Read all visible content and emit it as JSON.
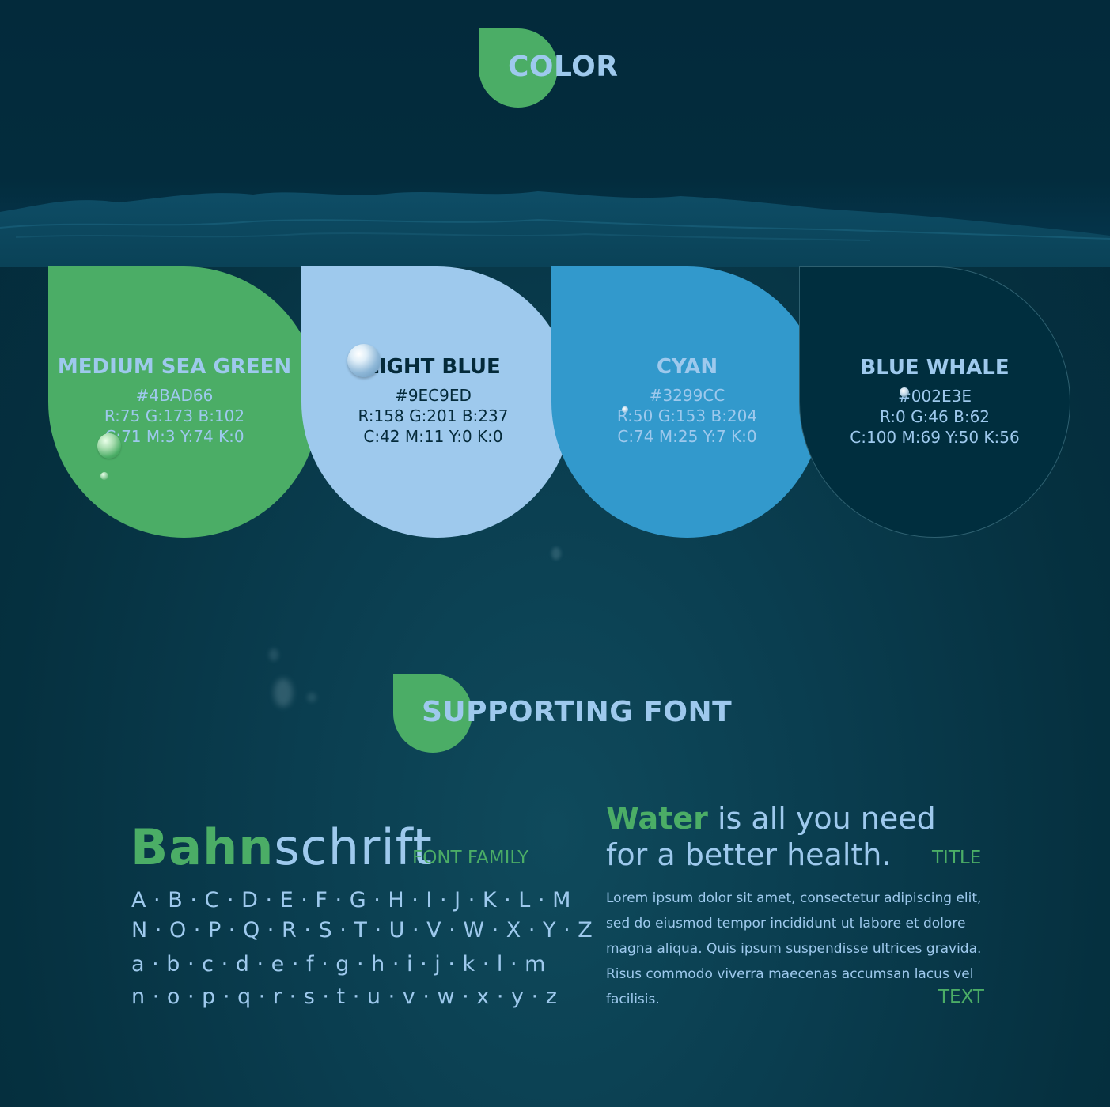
{
  "headings": {
    "color": "COLOR",
    "supporting_font": "SUPPORTING FONT"
  },
  "swatches": [
    {
      "name": "MEDIUM SEA GREEN",
      "hex": "#4BAD66",
      "rgb": "R:75 G:173 B:102",
      "cmyk": "C:71 M:3 Y:74 K:0",
      "color": "#4bad66"
    },
    {
      "name": "LIGHT BLUE",
      "hex": "#9EC9ED",
      "rgb": "R:158 G:201 B:237",
      "cmyk": "C:42 M:11 Y:0 K:0",
      "color": "#9ec9ed"
    },
    {
      "name": "CYAN",
      "hex": "#3299CC",
      "rgb": "R:50 G:153 B:204",
      "cmyk": "C:74 M:25 Y:7 K:0",
      "color": "#3299cc"
    },
    {
      "name": "BLUE WHALE",
      "hex": "#002E3E",
      "rgb": "R:0 G:46 B:62",
      "cmyk": "C:100 M:69 Y:50 K:56",
      "color": "#002e3e"
    }
  ],
  "font": {
    "name_bold": "Bahn",
    "name_light": "schrift",
    "family_label": "FONT FAMILY",
    "upper_line1": "A · B · C · D · E · F · G · H · I · J · K · L · M",
    "upper_line2": "N · O · P · Q · R · S · T · U · V · W · X · Y · Z",
    "lower_line1": "a · b · c · d · e · f · g · h · i · j · k · l · m",
    "lower_line2": "n · o · p · q · r · s · t · u · v · w · x · y · z"
  },
  "sample": {
    "title_accent": "Water",
    "title_rest_line1": " is all you need",
    "title_line2": "for a better health.",
    "title_label": "TITLE",
    "body": "Lorem ipsum dolor sit amet, consectetur adipiscing elit, sed do eiusmod tempor incididunt ut labore et dolore magna aliqua. Quis ipsum suspendisse ultrices gravida. Risus commodo viverra maecenas accumsan lacus vel facilisis.",
    "text_label": "TEXT"
  }
}
